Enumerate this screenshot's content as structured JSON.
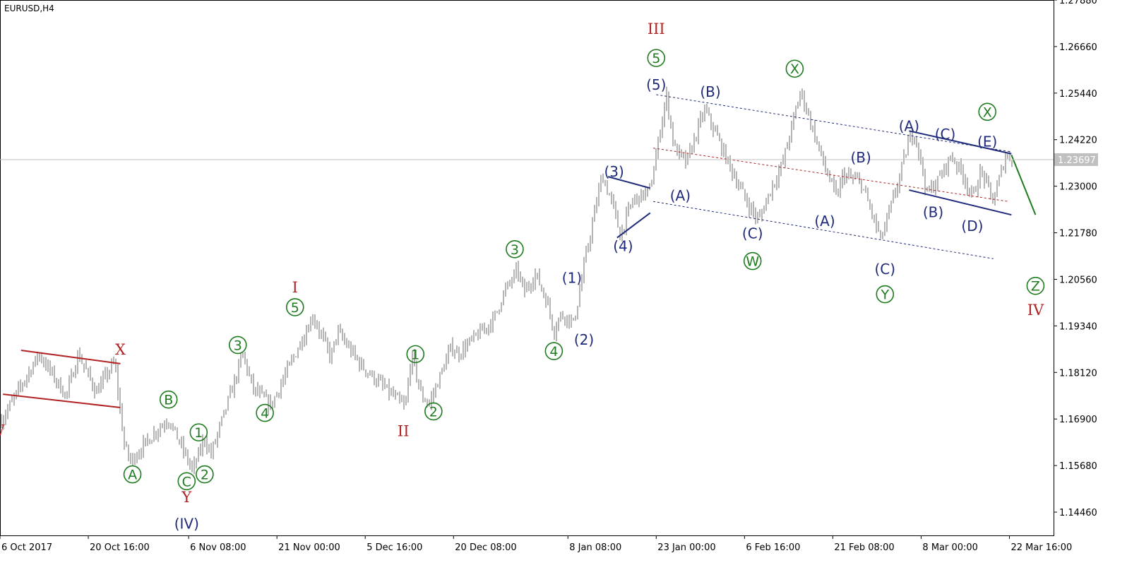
{
  "header": {
    "symbol_label": "EURUSD,H4"
  },
  "colors": {
    "price_bars": "#6b6b6b",
    "primary": "#1e7b1e",
    "intermediate": "#1f2a7a",
    "cycle": "#b22222",
    "current_price_bg": "#c0c0c0"
  },
  "chart_data": {
    "type": "ohlc",
    "symbol": "EURUSD",
    "timeframe": "H4",
    "x_start": "2017-10-06",
    "x_end": "2018-03-30",
    "ylim": [
      1.1385,
      1.2788
    ],
    "current_price": 1.23697,
    "current_price_label": "1.23697",
    "y_ticks": [
      {
        "value": 1.2788,
        "label": "1.27880"
      },
      {
        "value": 1.2666,
        "label": "1.26660"
      },
      {
        "value": 1.2544,
        "label": "1.25440"
      },
      {
        "value": 1.2422,
        "label": "1.24220"
      },
      {
        "value": 1.23,
        "label": "1.23000"
      },
      {
        "value": 1.2178,
        "label": "1.21780"
      },
      {
        "value": 1.2056,
        "label": "1.20560"
      },
      {
        "value": 1.1934,
        "label": "1.19340"
      },
      {
        "value": 1.1812,
        "label": "1.18120"
      },
      {
        "value": 1.169,
        "label": "1.16900"
      },
      {
        "value": 1.1568,
        "label": "1.15680"
      },
      {
        "value": 1.1446,
        "label": "1.14460"
      }
    ],
    "x_ticks": [
      {
        "t": "2017-10-06 00:00",
        "label": "6 Oct 2017"
      },
      {
        "t": "2017-10-20 16:00",
        "label": "20 Oct 16:00"
      },
      {
        "t": "2017-11-06 08:00",
        "label": "6 Nov 08:00"
      },
      {
        "t": "2017-11-21 00:00",
        "label": "21 Nov 00:00"
      },
      {
        "t": "2017-12-05 16:00",
        "label": "5 Dec 16:00"
      },
      {
        "t": "2017-12-20 08:00",
        "label": "20 Dec 08:00"
      },
      {
        "t": "2018-01-08 08:00",
        "label": "8 Jan 08:00"
      },
      {
        "t": "2018-01-23 00:00",
        "label": "23 Jan 00:00"
      },
      {
        "t": "2018-02-06 16:00",
        "label": "6 Feb 16:00"
      },
      {
        "t": "2018-02-21 08:00",
        "label": "21 Feb 08:00"
      },
      {
        "t": "2018-03-08 00:00",
        "label": "8 Mar 00:00"
      },
      {
        "t": "2018-03-22 16:00",
        "label": "22 Mar 16:00"
      }
    ],
    "price_path": [
      {
        "t": "2017-10-06 00:00",
        "p": 1.168
      },
      {
        "t": "2017-10-12 12:00",
        "p": 1.186
      },
      {
        "t": "2017-10-17 00:00",
        "p": 1.175
      },
      {
        "t": "2017-10-19 00:00",
        "p": 1.186
      },
      {
        "t": "2017-10-22 00:00",
        "p": 1.176
      },
      {
        "t": "2017-10-25 00:00",
        "p": 1.184
      },
      {
        "t": "2017-10-26 16:00",
        "p": 1.162
      },
      {
        "t": "2017-10-27 16:00",
        "p": 1.158
      },
      {
        "t": "2017-11-01 00:00",
        "p": 1.166
      },
      {
        "t": "2017-11-03 00:00",
        "p": 1.169
      },
      {
        "t": "2017-11-07 00:00",
        "p": 1.1555
      },
      {
        "t": "2017-11-09 00:00",
        "p": 1.164
      },
      {
        "t": "2017-11-10 00:00",
        "p": 1.1595
      },
      {
        "t": "2017-11-14 00:00",
        "p": 1.179
      },
      {
        "t": "2017-11-15 08:00",
        "p": 1.186
      },
      {
        "t": "2017-11-17 00:00",
        "p": 1.177
      },
      {
        "t": "2017-11-20 00:00",
        "p": 1.1725
      },
      {
        "t": "2017-11-27 00:00",
        "p": 1.196
      },
      {
        "t": "2017-11-30 00:00",
        "p": 1.185
      },
      {
        "t": "2017-12-01 00:00",
        "p": 1.192
      },
      {
        "t": "2017-12-05 00:00",
        "p": 1.183
      },
      {
        "t": "2017-12-11 00:00",
        "p": 1.174
      },
      {
        "t": "2017-12-12 08:00",
        "p": 1.172
      },
      {
        "t": "2017-12-13 08:00",
        "p": 1.186
      },
      {
        "t": "2017-12-15 00:00",
        "p": 1.175
      },
      {
        "t": "2017-12-16 08:00",
        "p": 1.173
      },
      {
        "t": "2017-12-20 00:00",
        "p": 1.188
      },
      {
        "t": "2017-12-21 00:00",
        "p": 1.186
      },
      {
        "t": "2017-12-27 00:00",
        "p": 1.195
      },
      {
        "t": "2017-12-28 16:00",
        "p": 1.202
      },
      {
        "t": "2017-12-31 00:00",
        "p": 1.208
      },
      {
        "t": "2018-01-01 00:00",
        "p": 1.202
      },
      {
        "t": "2018-01-03 00:00",
        "p": 1.207
      },
      {
        "t": "2018-01-05 00:00",
        "p": 1.199
      },
      {
        "t": "2018-01-06 00:00",
        "p": 1.192
      },
      {
        "t": "2018-01-07 00:00",
        "p": 1.196
      },
      {
        "t": "2018-01-08 00:00",
        "p": 1.196
      },
      {
        "t": "2018-01-09 08:00",
        "p": 1.194
      },
      {
        "t": "2018-01-11 00:00",
        "p": 1.209
      },
      {
        "t": "2018-01-13 00:00",
        "p": 1.225
      },
      {
        "t": "2018-01-14 00:00",
        "p": 1.233
      },
      {
        "t": "2018-01-16 00:00",
        "p": 1.224
      },
      {
        "t": "2018-01-17 00:00",
        "p": 1.217
      },
      {
        "t": "2018-01-19 00:00",
        "p": 1.226
      },
      {
        "t": "2018-01-22 00:00",
        "p": 1.229
      },
      {
        "t": "2018-01-24 16:00",
        "p": 1.254
      },
      {
        "t": "2018-01-26 00:00",
        "p": 1.24
      },
      {
        "t": "2018-01-28 00:00",
        "p": 1.236
      },
      {
        "t": "2018-01-31 00:00",
        "p": 1.25
      },
      {
        "t": "2018-02-01 00:00",
        "p": 1.247
      },
      {
        "t": "2018-02-04 00:00",
        "p": 1.236
      },
      {
        "t": "2018-02-07 00:00",
        "p": 1.226
      },
      {
        "t": "2018-02-09 00:00",
        "p": 1.221
      },
      {
        "t": "2018-02-11 00:00",
        "p": 1.229
      },
      {
        "t": "2018-02-13 00:00",
        "p": 1.236
      },
      {
        "t": "2018-02-16 00:00",
        "p": 1.255
      },
      {
        "t": "2018-02-18 00:00",
        "p": 1.245
      },
      {
        "t": "2018-02-20 00:00",
        "p": 1.235
      },
      {
        "t": "2018-02-22 00:00",
        "p": 1.227
      },
      {
        "t": "2018-02-23 00:00",
        "p": 1.233
      },
      {
        "t": "2018-02-26 00:00",
        "p": 1.231
      },
      {
        "t": "2018-02-27 08:00",
        "p": 1.225
      },
      {
        "t": "2018-03-01 08:00",
        "p": 1.216
      },
      {
        "t": "2018-03-04 00:00",
        "p": 1.23
      },
      {
        "t": "2018-03-06 00:00",
        "p": 1.242
      },
      {
        "t": "2018-03-07 00:00",
        "p": 1.244
      },
      {
        "t": "2018-03-09 00:00",
        "p": 1.228
      },
      {
        "t": "2018-03-11 00:00",
        "p": 1.232
      },
      {
        "t": "2018-03-13 00:00",
        "p": 1.238
      },
      {
        "t": "2018-03-15 00:00",
        "p": 1.233
      },
      {
        "t": "2018-03-16 12:00",
        "p": 1.227
      },
      {
        "t": "2018-03-18 00:00",
        "p": 1.234
      },
      {
        "t": "2018-03-20 00:00",
        "p": 1.226
      },
      {
        "t": "2018-03-22 00:00",
        "p": 1.238
      },
      {
        "t": "2018-03-23 08:00",
        "p": 1.237
      }
    ],
    "wave_labels": [
      {
        "text": "W",
        "t": "2017-10-05 12:00",
        "p": 1.166,
        "style": "cycle"
      },
      {
        "text": "X",
        "t": "2017-10-26 00:00",
        "p": 1.1872,
        "style": "cycle"
      },
      {
        "text": "Y",
        "t": "2017-11-06 00:00",
        "p": 1.1485,
        "style": "cycle"
      },
      {
        "text": "(IV)",
        "t": "2017-11-06 00:00",
        "p": 1.1416,
        "style": "intermediate"
      },
      {
        "text": "A",
        "t": "2017-10-28 00:00",
        "p": 1.1545,
        "style": "primary",
        "circle": true
      },
      {
        "text": "B",
        "t": "2017-11-03 00:00",
        "p": 1.1741,
        "style": "primary",
        "circle": true
      },
      {
        "text": "C",
        "t": "2017-11-06 00:00",
        "p": 1.1527,
        "style": "primary",
        "circle": true
      },
      {
        "text": "1",
        "t": "2017-11-08 00:00",
        "p": 1.1655,
        "style": "primary",
        "circle": true
      },
      {
        "text": "2",
        "t": "2017-11-09 00:00",
        "p": 1.1545,
        "style": "primary",
        "circle": true
      },
      {
        "text": "3",
        "t": "2017-11-14 12:00",
        "p": 1.1884,
        "style": "primary",
        "circle": true
      },
      {
        "text": "4",
        "t": "2017-11-19 00:00",
        "p": 1.1706,
        "style": "primary",
        "circle": true
      },
      {
        "text": "I",
        "t": "2017-11-24 00:00",
        "p": 1.2035,
        "style": "cycle"
      },
      {
        "text": "5",
        "t": "2017-11-24 00:00",
        "p": 1.1983,
        "style": "primary",
        "circle": true
      },
      {
        "text": "II",
        "t": "2017-12-12 00:00",
        "p": 1.1658,
        "style": "cycle"
      },
      {
        "text": "1",
        "t": "2017-12-14 00:00",
        "p": 1.186,
        "style": "primary",
        "circle": true
      },
      {
        "text": "2",
        "t": "2017-12-17 00:00",
        "p": 1.171,
        "style": "primary",
        "circle": true
      },
      {
        "text": "3",
        "t": "2017-12-30 12:00",
        "p": 1.2135,
        "style": "primary",
        "circle": true
      },
      {
        "text": "4",
        "t": "2018-01-06 00:00",
        "p": 1.1868,
        "style": "primary",
        "circle": true
      },
      {
        "text": "(1)",
        "t": "2018-01-09 00:00",
        "p": 1.206,
        "style": "intermediate"
      },
      {
        "text": "(2)",
        "t": "2018-01-11 00:00",
        "p": 1.1898,
        "style": "intermediate"
      },
      {
        "text": "(3)",
        "t": "2018-01-16 00:00",
        "p": 1.2338,
        "style": "intermediate"
      },
      {
        "text": "(4)",
        "t": "2018-01-17 12:00",
        "p": 1.2143,
        "style": "intermediate"
      },
      {
        "text": "III",
        "t": "2018-01-23 00:00",
        "p": 1.2712,
        "style": "cycle"
      },
      {
        "text": "5",
        "t": "2018-01-23 00:00",
        "p": 1.2636,
        "style": "primary",
        "circle": true
      },
      {
        "text": "(5)",
        "t": "2018-01-23 00:00",
        "p": 1.2566,
        "style": "intermediate"
      },
      {
        "text": "(A)",
        "t": "2018-01-27 00:00",
        "p": 1.2275,
        "style": "intermediate"
      },
      {
        "text": "(B)",
        "t": "2018-02-01 00:00",
        "p": 1.2547,
        "style": "intermediate"
      },
      {
        "text": "(C)",
        "t": "2018-02-08 00:00",
        "p": 1.2176,
        "style": "intermediate"
      },
      {
        "text": "W",
        "t": "2018-02-08 00:00",
        "p": 1.2104,
        "style": "primary",
        "circle": true
      },
      {
        "text": "X",
        "t": "2018-02-15 00:00",
        "p": 1.2608,
        "style": "primary",
        "circle": true
      },
      {
        "text": "(A)",
        "t": "2018-02-20 00:00",
        "p": 1.2209,
        "style": "intermediate"
      },
      {
        "text": "(B)",
        "t": "2018-02-26 00:00",
        "p": 1.2375,
        "style": "intermediate"
      },
      {
        "text": "(C)",
        "t": "2018-03-02 00:00",
        "p": 1.2083,
        "style": "intermediate"
      },
      {
        "text": "Y",
        "t": "2018-03-02 00:00",
        "p": 1.2017,
        "style": "primary",
        "circle": true
      },
      {
        "text": "(A)",
        "t": "2018-03-06 00:00",
        "p": 1.2458,
        "style": "intermediate"
      },
      {
        "text": "(B)",
        "t": "2018-03-10 00:00",
        "p": 1.2232,
        "style": "intermediate"
      },
      {
        "text": "(C)",
        "t": "2018-03-12 00:00",
        "p": 1.2436,
        "style": "intermediate"
      },
      {
        "text": "(D)",
        "t": "2018-03-16 12:00",
        "p": 1.2196,
        "style": "intermediate"
      },
      {
        "text": "X",
        "t": "2018-03-19 00:00",
        "p": 1.2495,
        "style": "primary",
        "circle": true
      },
      {
        "text": "(E)",
        "t": "2018-03-19 00:00",
        "p": 1.2417,
        "style": "intermediate"
      },
      {
        "text": "Z",
        "t": "2018-03-27 00:00",
        "p": 1.2039,
        "style": "primary",
        "circle": true
      },
      {
        "text": "IV",
        "t": "2018-03-27 00:00",
        "p": 1.1975,
        "style": "cycle"
      }
    ],
    "trend_lines": [
      {
        "style": "cycle",
        "from": {
          "t": "2017-10-09 12:00",
          "p": 1.187
        },
        "to": {
          "t": "2017-10-26 00:00",
          "p": 1.1835
        },
        "dashed": false
      },
      {
        "style": "cycle",
        "from": {
          "t": "2017-10-06 12:00",
          "p": 1.1755
        },
        "to": {
          "t": "2017-10-26 00:00",
          "p": 1.172
        },
        "dashed": false
      },
      {
        "style": "intermediate",
        "from": {
          "t": "2018-01-15 00:00",
          "p": 1.2325
        },
        "to": {
          "t": "2018-01-22 00:00",
          "p": 1.2295
        },
        "dashed": false
      },
      {
        "style": "intermediate",
        "from": {
          "t": "2018-01-16 12:00",
          "p": 1.2165
        },
        "to": {
          "t": "2018-01-22 00:00",
          "p": 1.223
        },
        "dashed": false
      },
      {
        "style": "intermediate",
        "from": {
          "t": "2018-01-23 00:00",
          "p": 1.254
        },
        "to": {
          "t": "2018-03-23 00:00",
          "p": 1.239
        },
        "dashed": true
      },
      {
        "style": "intermediate",
        "from": {
          "t": "2018-01-22 12:00",
          "p": 1.226
        },
        "to": {
          "t": "2018-03-20 00:00",
          "p": 1.211
        },
        "dashed": true
      },
      {
        "style": "cycle",
        "from": {
          "t": "2018-01-22 12:00",
          "p": 1.24
        },
        "to": {
          "t": "2018-03-22 12:00",
          "p": 1.226
        },
        "dashed": true
      },
      {
        "style": "intermediate",
        "from": {
          "t": "2018-03-06 00:00",
          "p": 1.2445
        },
        "to": {
          "t": "2018-03-23 00:00",
          "p": 1.2385
        },
        "dashed": false
      },
      {
        "style": "intermediate",
        "from": {
          "t": "2018-03-06 00:00",
          "p": 1.229
        },
        "to": {
          "t": "2018-03-23 00:00",
          "p": 1.2225
        },
        "dashed": false
      },
      {
        "style": "primary",
        "from": {
          "t": "2018-03-23 00:00",
          "p": 1.2382
        },
        "to": {
          "t": "2018-03-27 00:00",
          "p": 1.2225
        },
        "dashed": false
      }
    ]
  }
}
